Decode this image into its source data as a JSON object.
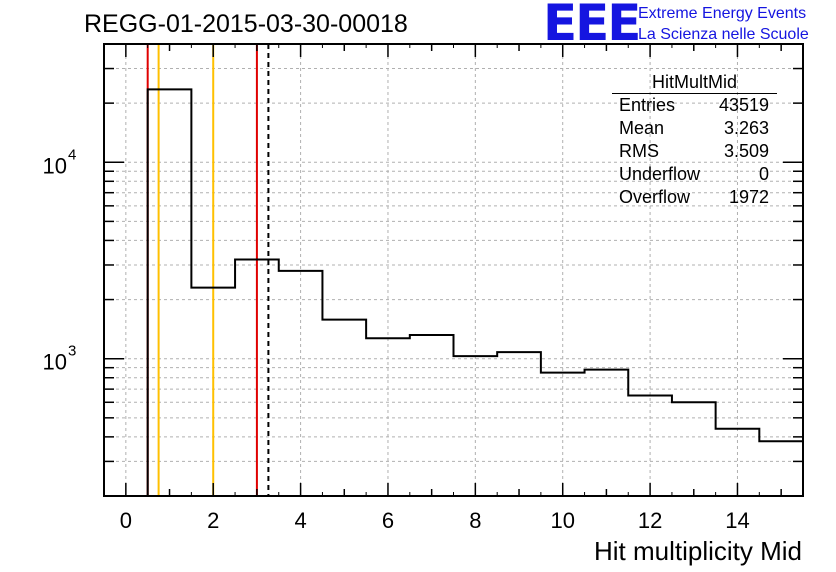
{
  "title": "REGG-01-2015-03-30-00018",
  "logo": {
    "mark": "EEE",
    "line1": "Extreme Energy Events",
    "line2": "La Scienza nelle Scuole",
    "color": "#1515e0"
  },
  "stats_box": {
    "name": "HitMultMid",
    "rows": [
      {
        "label": "Entries",
        "value": "43519"
      },
      {
        "label": "Mean",
        "value": "3.263"
      },
      {
        "label": "RMS",
        "value": "3.509"
      },
      {
        "label": "Underflow",
        "value": "0"
      },
      {
        "label": "Overflow",
        "value": "1972"
      }
    ]
  },
  "chart_data": {
    "type": "histogram",
    "title": "REGG-01-2015-03-30-00018",
    "xlabel": "Hit multiplicity Mid",
    "ylabel": "",
    "xlim": [
      -0.5,
      15.5
    ],
    "ylim": [
      200,
      40000
    ],
    "yscale": "log",
    "grid": true,
    "bin_edges": [
      0.5,
      1.5,
      2.5,
      3.5,
      4.5,
      5.5,
      6.5,
      7.5,
      8.5,
      9.5,
      10.5,
      11.5,
      12.5,
      13.5,
      14.5,
      15.5
    ],
    "values": [
      23500,
      2300,
      3200,
      2800,
      1580,
      1270,
      1320,
      1030,
      1080,
      850,
      880,
      650,
      600,
      440,
      380
    ],
    "x_ticks": [
      0,
      2,
      4,
      6,
      8,
      10,
      12,
      14
    ],
    "x_tick_labels": [
      "0",
      "2",
      "4",
      "6",
      "8",
      "10",
      "12",
      "14"
    ],
    "y_major_ticks": [
      1000,
      10000
    ],
    "y_tick_labels": [
      "10",
      "10"
    ],
    "y_tick_exponents": [
      "3",
      "4"
    ],
    "vertical_lines": [
      {
        "x": 0.5,
        "color": "#e00000",
        "style": "solid"
      },
      {
        "x": 0.75,
        "color": "#ffc000",
        "style": "solid"
      },
      {
        "x": 2.0,
        "color": "#ffc000",
        "style": "solid"
      },
      {
        "x": 3.0,
        "color": "#e00000",
        "style": "solid"
      },
      {
        "x": 3.263,
        "color": "#000000",
        "style": "dashed"
      }
    ]
  }
}
